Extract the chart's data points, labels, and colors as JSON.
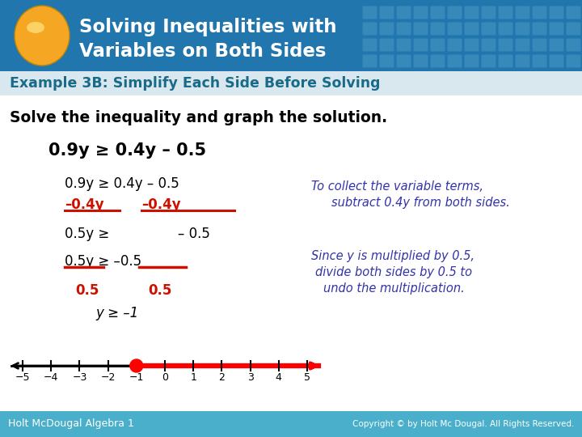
{
  "header_bg_color": "#2176AE",
  "header_text_color": "#FFFFFF",
  "oval_color": "#F5A623",
  "example_label": "Example 3B: Simplify Each Side Before Solving",
  "example_label_color": "#1A6B8A",
  "footer_bg_color": "#4AAFCA",
  "footer_left": "Holt McDougal Algebra 1",
  "footer_right": "Copyright © by Holt Mc Dougal. All Rights Reserved.",
  "footer_text_color": "#FFFFFF",
  "main_bg_color": "#FFFFFF",
  "black": "#000000",
  "red": "#CC1100",
  "blue_italic": "#3333AA",
  "grid_pattern_color": "#4A9AC4",
  "example_bar_color": "#D8E8EE"
}
